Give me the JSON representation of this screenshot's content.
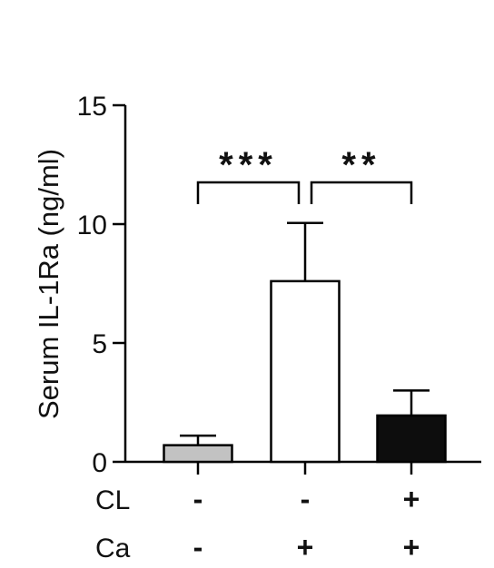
{
  "chart_data": {
    "type": "bar",
    "ylabel": "Serum IL-1Ra (ng/ml)",
    "ylim": [
      0,
      15
    ],
    "yticks": [
      0,
      5,
      10,
      15
    ],
    "bars": [
      {
        "value": 0.7,
        "error": 0.4,
        "fill": "#c2c2c2"
      },
      {
        "value": 7.6,
        "error": 2.45,
        "fill": "#ffffff"
      },
      {
        "value": 1.95,
        "error": 1.05,
        "fill": "#0d0d0d"
      }
    ],
    "conditions": [
      {
        "label": "CL",
        "values": [
          "-",
          "-",
          "+"
        ]
      },
      {
        "label": "Ca",
        "values": [
          "-",
          "+",
          "+"
        ]
      }
    ],
    "significance": [
      {
        "from": 0,
        "to": 1,
        "label": "***"
      },
      {
        "from": 1,
        "to": 2,
        "label": "**"
      }
    ],
    "axis_color": "#000000"
  }
}
